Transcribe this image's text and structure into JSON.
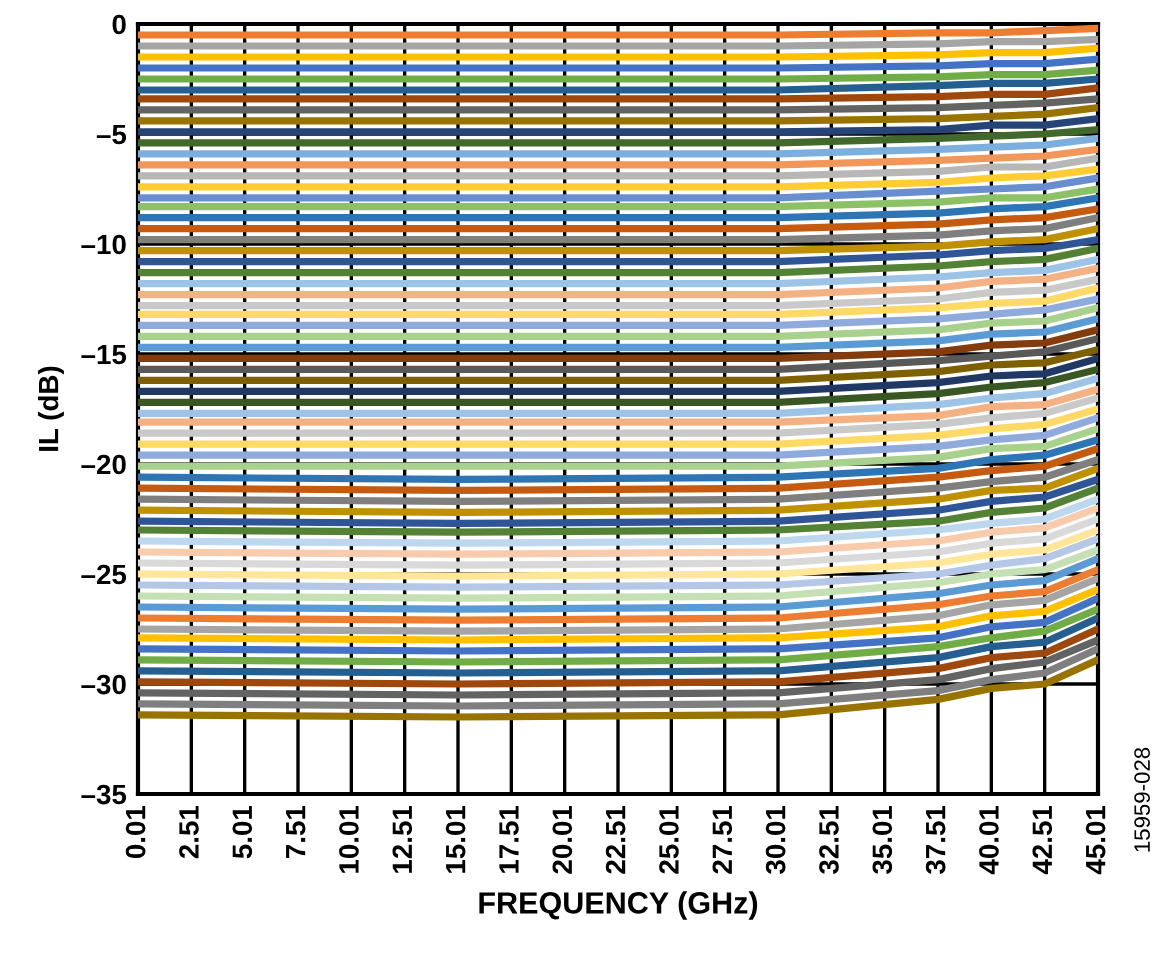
{
  "chart_data": {
    "type": "line",
    "xlabel": "FREQUENCY (GHz)",
    "ylabel": "IL (dB)",
    "annotations": [
      "15959-028"
    ],
    "xlim": [
      0.01,
      45.01
    ],
    "xticks": [
      0.01,
      2.51,
      5.01,
      7.51,
      10.01,
      12.51,
      15.01,
      17.51,
      20.01,
      22.51,
      25.01,
      27.51,
      30.01,
      32.51,
      35.01,
      37.51,
      40.01,
      42.51,
      45.01
    ],
    "ylim": [
      -35,
      0
    ],
    "yticks": [
      0,
      {
        "value": -5,
        "label": "–5"
      },
      {
        "value": -10,
        "label": "–10"
      },
      {
        "value": -15,
        "label": "–15"
      },
      {
        "value": -20,
        "label": "–20"
      },
      {
        "value": -25,
        "label": "–25"
      },
      {
        "value": -30,
        "label": "–30"
      },
      {
        "value": -35,
        "label": "–35"
      }
    ],
    "grid": true,
    "legend": false,
    "marker": "none",
    "line_style": "solid",
    "x": [
      0.01,
      15.01,
      30.01,
      37.51,
      40.01,
      42.51,
      45.01
    ],
    "series": [
      {
        "color": "#ED7D31",
        "values": [
          -0.5,
          -0.5,
          -0.5,
          -0.4,
          -0.4,
          -0.3,
          -0.2
        ]
      },
      {
        "color": "#A5A5A5",
        "values": [
          -1.0,
          -1.0,
          -1.0,
          -0.9,
          -0.8,
          -0.8,
          -0.7
        ]
      },
      {
        "color": "#FFC000",
        "values": [
          -1.5,
          -1.5,
          -1.5,
          -1.4,
          -1.3,
          -1.3,
          -1.1
        ]
      },
      {
        "color": "#4472C4",
        "values": [
          -2.0,
          -2.0,
          -2.0,
          -1.9,
          -1.8,
          -1.8,
          -1.6
        ]
      },
      {
        "color": "#70AD47",
        "values": [
          -2.5,
          -2.5,
          -2.5,
          -2.4,
          -2.3,
          -2.3,
          -2.1
        ]
      },
      {
        "color": "#255E91",
        "values": [
          -3.0,
          -3.0,
          -3.0,
          -2.8,
          -2.7,
          -2.7,
          -2.5
        ]
      },
      {
        "color": "#9E480E",
        "values": [
          -3.4,
          -3.4,
          -3.4,
          -3.3,
          -3.2,
          -3.2,
          -2.9
        ]
      },
      {
        "color": "#636363",
        "values": [
          -3.9,
          -3.9,
          -3.9,
          -3.8,
          -3.7,
          -3.6,
          -3.4
        ]
      },
      {
        "color": "#997300",
        "values": [
          -4.4,
          -4.4,
          -4.4,
          -4.3,
          -4.2,
          -4.1,
          -3.8
        ]
      },
      {
        "color": "#264478",
        "values": [
          -4.9,
          -4.9,
          -4.9,
          -4.8,
          -4.6,
          -4.6,
          -4.3
        ]
      },
      {
        "color": "#43682B",
        "values": [
          -5.4,
          -5.4,
          -5.4,
          -5.2,
          -5.1,
          -5.0,
          -4.8
        ]
      },
      {
        "color": "#7CAFDD",
        "values": [
          -5.9,
          -5.9,
          -5.9,
          -5.7,
          -5.6,
          -5.5,
          -5.2
        ]
      },
      {
        "color": "#F1975A",
        "values": [
          -6.4,
          -6.4,
          -6.4,
          -6.2,
          -6.1,
          -6.0,
          -5.7
        ]
      },
      {
        "color": "#B7B7B7",
        "values": [
          -6.9,
          -6.9,
          -6.9,
          -6.7,
          -6.5,
          -6.5,
          -6.1
        ]
      },
      {
        "color": "#FFCD33",
        "values": [
          -7.4,
          -7.4,
          -7.4,
          -7.2,
          -7.0,
          -6.9,
          -6.6
        ]
      },
      {
        "color": "#698ED0",
        "values": [
          -7.9,
          -7.9,
          -7.9,
          -7.6,
          -7.5,
          -7.4,
          -7.0
        ]
      },
      {
        "color": "#8CC168",
        "values": [
          -8.3,
          -8.3,
          -8.3,
          -8.1,
          -7.9,
          -7.9,
          -7.5
        ]
      },
      {
        "color": "#2E75B6",
        "values": [
          -8.8,
          -8.8,
          -8.8,
          -8.6,
          -8.4,
          -8.3,
          -7.9
        ]
      },
      {
        "color": "#C55A11",
        "values": [
          -9.3,
          -9.3,
          -9.3,
          -9.1,
          -8.9,
          -8.8,
          -8.4
        ]
      },
      {
        "color": "#7F7F7F",
        "values": [
          -9.8,
          -9.8,
          -9.8,
          -9.6,
          -9.4,
          -9.3,
          -8.8
        ]
      },
      {
        "color": "#BF9000",
        "values": [
          -10.3,
          -10.3,
          -10.3,
          -10.1,
          -9.9,
          -9.8,
          -9.3
        ]
      },
      {
        "color": "#2F5597",
        "values": [
          -10.8,
          -10.8,
          -10.8,
          -10.5,
          -10.3,
          -10.2,
          -9.8
        ]
      },
      {
        "color": "#548235",
        "values": [
          -11.3,
          -11.3,
          -11.3,
          -11.0,
          -10.8,
          -10.7,
          -10.2
        ]
      },
      {
        "color": "#9DC3E6",
        "values": [
          -11.8,
          -11.8,
          -11.8,
          -11.5,
          -11.3,
          -11.2,
          -10.7
        ]
      },
      {
        "color": "#F4B183",
        "values": [
          -12.3,
          -12.3,
          -12.3,
          -12.0,
          -11.7,
          -11.6,
          -11.1
        ]
      },
      {
        "color": "#C9C9C9",
        "values": [
          -12.8,
          -12.8,
          -12.8,
          -12.5,
          -12.2,
          -12.1,
          -11.6
        ]
      },
      {
        "color": "#FFD966",
        "values": [
          -13.2,
          -13.2,
          -13.2,
          -12.9,
          -12.7,
          -12.6,
          -12.0
        ]
      },
      {
        "color": "#8FAADC",
        "values": [
          -13.7,
          -13.7,
          -13.7,
          -13.4,
          -13.2,
          -13.0,
          -12.5
        ]
      },
      {
        "color": "#A9D18E",
        "values": [
          -14.2,
          -14.2,
          -14.2,
          -13.9,
          -13.6,
          -13.5,
          -12.9
        ]
      },
      {
        "color": "#5B9BD5",
        "values": [
          -14.7,
          -14.7,
          -14.7,
          -14.4,
          -14.1,
          -14.0,
          -13.4
        ]
      },
      {
        "color": "#843C0C",
        "values": [
          -15.2,
          -15.2,
          -15.2,
          -14.9,
          -14.6,
          -14.5,
          -13.9
        ]
      },
      {
        "color": "#595959",
        "values": [
          -15.7,
          -15.7,
          -15.7,
          -15.3,
          -15.1,
          -14.9,
          -14.3
        ]
      },
      {
        "color": "#7F6000",
        "values": [
          -16.2,
          -16.2,
          -16.2,
          -15.8,
          -15.5,
          -15.4,
          -14.8
        ]
      },
      {
        "color": "#203864",
        "values": [
          -16.7,
          -16.7,
          -16.7,
          -16.3,
          -16.0,
          -15.9,
          -15.2
        ]
      },
      {
        "color": "#385723",
        "values": [
          -17.2,
          -17.2,
          -17.2,
          -16.8,
          -16.5,
          -16.3,
          -15.7
        ]
      },
      {
        "color": "#9DC3E6",
        "values": [
          -17.7,
          -17.7,
          -17.7,
          -17.3,
          -17.0,
          -16.8,
          -16.1
        ]
      },
      {
        "color": "#F4B183",
        "values": [
          -18.1,
          -18.1,
          -18.1,
          -17.8,
          -17.4,
          -17.3,
          -16.6
        ]
      },
      {
        "color": "#C9C9C9",
        "values": [
          -18.6,
          -18.6,
          -18.6,
          -18.2,
          -17.9,
          -17.7,
          -17.0
        ]
      },
      {
        "color": "#FFD966",
        "values": [
          -19.1,
          -19.1,
          -19.1,
          -18.7,
          -18.4,
          -18.2,
          -17.5
        ]
      },
      {
        "color": "#8FAADC",
        "values": [
          -19.6,
          -19.6,
          -19.6,
          -19.2,
          -18.9,
          -18.7,
          -17.9
        ]
      },
      {
        "color": "#A9D18E",
        "values": [
          -20.1,
          -20.1,
          -20.1,
          -19.7,
          -19.3,
          -19.2,
          -18.4
        ]
      },
      {
        "color": "#2E75B6",
        "values": [
          -20.6,
          -20.7,
          -20.6,
          -20.2,
          -19.8,
          -19.6,
          -18.9
        ]
      },
      {
        "color": "#C55A11",
        "values": [
          -21.1,
          -21.2,
          -21.1,
          -20.6,
          -20.3,
          -20.1,
          -19.3
        ]
      },
      {
        "color": "#7F7F7F",
        "values": [
          -21.6,
          -21.7,
          -21.6,
          -21.1,
          -20.8,
          -20.6,
          -19.8
        ]
      },
      {
        "color": "#BF9000",
        "values": [
          -22.1,
          -22.2,
          -22.1,
          -21.6,
          -21.2,
          -21.1,
          -20.2
        ]
      },
      {
        "color": "#2F5597",
        "values": [
          -22.6,
          -22.7,
          -22.6,
          -22.1,
          -21.7,
          -21.5,
          -20.7
        ]
      },
      {
        "color": "#548235",
        "values": [
          -23.0,
          -23.1,
          -23.0,
          -22.6,
          -22.2,
          -22.0,
          -21.1
        ]
      },
      {
        "color": "#BDD7EE",
        "values": [
          -23.5,
          -23.6,
          -23.5,
          -23.0,
          -22.7,
          -22.5,
          -21.6
        ]
      },
      {
        "color": "#F8CBAD",
        "values": [
          -24.0,
          -24.1,
          -24.0,
          -23.5,
          -23.1,
          -22.9,
          -22.0
        ]
      },
      {
        "color": "#D9D9D9",
        "values": [
          -24.5,
          -24.6,
          -24.5,
          -24.0,
          -23.6,
          -23.4,
          -22.5
        ]
      },
      {
        "color": "#FFE699",
        "values": [
          -25.0,
          -25.1,
          -25.0,
          -24.5,
          -24.1,
          -23.9,
          -23.0
        ]
      },
      {
        "color": "#B4C7E7",
        "values": [
          -25.5,
          -25.6,
          -25.5,
          -25.0,
          -24.6,
          -24.3,
          -23.4
        ]
      },
      {
        "color": "#C5E0B4",
        "values": [
          -26.0,
          -26.1,
          -26.0,
          -25.4,
          -25.0,
          -24.8,
          -23.9
        ]
      },
      {
        "color": "#5B9BD5",
        "values": [
          -26.5,
          -26.6,
          -26.5,
          -25.9,
          -25.5,
          -25.3,
          -24.3
        ]
      },
      {
        "color": "#ED7D31",
        "values": [
          -27.0,
          -27.1,
          -27.0,
          -26.4,
          -26.0,
          -25.8,
          -24.8
        ]
      },
      {
        "color": "#A5A5A5",
        "values": [
          -27.5,
          -27.6,
          -27.5,
          -26.9,
          -26.4,
          -26.2,
          -25.2
        ]
      },
      {
        "color": "#FFC000",
        "values": [
          -27.9,
          -28.0,
          -27.9,
          -27.4,
          -26.9,
          -26.7,
          -25.7
        ]
      },
      {
        "color": "#4472C4",
        "values": [
          -28.4,
          -28.5,
          -28.4,
          -27.9,
          -27.4,
          -27.2,
          -26.1
        ]
      },
      {
        "color": "#70AD47",
        "values": [
          -28.9,
          -29.0,
          -28.9,
          -28.3,
          -27.9,
          -27.6,
          -26.6
        ]
      },
      {
        "color": "#255E91",
        "values": [
          -29.4,
          -29.5,
          -29.4,
          -28.8,
          -28.3,
          -28.1,
          -27.0
        ]
      },
      {
        "color": "#9E480E",
        "values": [
          -29.9,
          -30.0,
          -29.9,
          -29.3,
          -28.8,
          -28.6,
          -27.5
        ]
      },
      {
        "color": "#636363",
        "values": [
          -30.4,
          -30.5,
          -30.4,
          -29.8,
          -29.3,
          -29.0,
          -28.0
        ]
      },
      {
        "color": "#7F7F7F",
        "values": [
          -30.9,
          -31.0,
          -30.9,
          -30.3,
          -29.8,
          -29.5,
          -28.4
        ]
      },
      {
        "color": "#997300",
        "values": [
          -31.4,
          -31.5,
          -31.4,
          -30.7,
          -30.2,
          -30.0,
          -28.9
        ]
      }
    ]
  }
}
